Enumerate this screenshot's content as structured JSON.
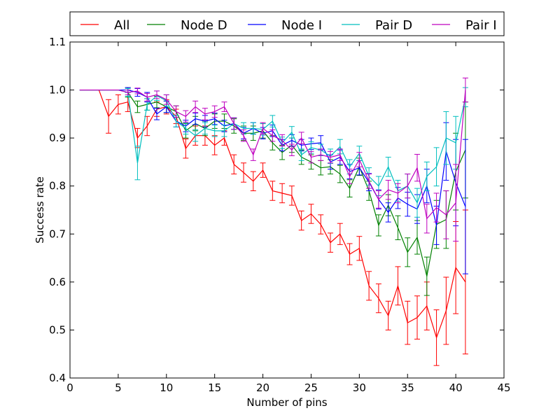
{
  "chart_data": {
    "type": "line",
    "title": "",
    "xlabel": "Number of pins",
    "ylabel": "Success rate",
    "xlim": [
      0,
      45
    ],
    "ylim": [
      0.4,
      1.1
    ],
    "x_ticks": [
      0,
      5,
      10,
      15,
      20,
      25,
      30,
      35,
      40,
      45
    ],
    "y_ticks": [
      0.4,
      0.5,
      0.6,
      0.7,
      0.8,
      0.9,
      1.0,
      1.1
    ],
    "grid": false,
    "legend_position": "top",
    "error_bars": true,
    "series": [
      {
        "name": "All",
        "color": "#ff0000",
        "x": [
          1,
          2,
          3,
          4,
          5,
          6,
          7,
          8,
          9,
          10,
          11,
          12,
          13,
          14,
          15,
          16,
          17,
          18,
          19,
          20,
          21,
          22,
          23,
          24,
          25,
          26,
          27,
          28,
          29,
          30,
          31,
          32,
          33,
          34,
          35,
          36,
          37,
          38,
          39,
          40,
          41
        ],
        "y": [
          1.0,
          1.0,
          1.0,
          0.945,
          0.97,
          0.975,
          0.9,
          0.925,
          0.96,
          0.965,
          0.945,
          0.878,
          0.905,
          0.905,
          0.885,
          0.9,
          0.845,
          0.828,
          0.81,
          0.833,
          0.79,
          0.785,
          0.78,
          0.728,
          0.742,
          0.72,
          0.682,
          0.7,
          0.658,
          0.67,
          0.592,
          0.566,
          0.53,
          0.592,
          0.515,
          0.526,
          0.55,
          0.484,
          0.54,
          0.63,
          0.6
        ],
        "err": [
          0,
          0,
          0,
          0.035,
          0.02,
          0.02,
          0.02,
          0.02,
          0.015,
          0.015,
          0.015,
          0.02,
          0.02,
          0.02,
          0.02,
          0.015,
          0.02,
          0.02,
          0.02,
          0.015,
          0.02,
          0.02,
          0.02,
          0.02,
          0.02,
          0.02,
          0.02,
          0.022,
          0.022,
          0.025,
          0.03,
          0.03,
          0.03,
          0.04,
          0.045,
          0.045,
          0.05,
          0.058,
          0.07,
          0.096,
          0.15
        ]
      },
      {
        "name": "Node D",
        "color": "#008000",
        "x": [
          1,
          2,
          3,
          4,
          5,
          6,
          7,
          8,
          9,
          10,
          11,
          12,
          13,
          14,
          15,
          16,
          17,
          18,
          19,
          20,
          21,
          22,
          23,
          24,
          25,
          26,
          27,
          28,
          29,
          30,
          31,
          32,
          33,
          34,
          35,
          36,
          37,
          38,
          39,
          40,
          41
        ],
        "y": [
          1.0,
          1.0,
          1.0,
          1.0,
          1.0,
          0.995,
          0.965,
          0.97,
          0.975,
          0.965,
          0.955,
          0.915,
          0.93,
          0.92,
          0.935,
          0.935,
          0.925,
          0.91,
          0.91,
          0.915,
          0.89,
          0.87,
          0.885,
          0.86,
          0.85,
          0.838,
          0.84,
          0.825,
          0.795,
          0.84,
          0.79,
          0.718,
          0.76,
          0.713,
          0.662,
          0.693,
          0.612,
          0.72,
          0.73,
          0.83,
          0.875
        ],
        "err": [
          0,
          0,
          0,
          0,
          0,
          0.01,
          0.012,
          0.012,
          0.012,
          0.012,
          0.012,
          0.015,
          0.015,
          0.015,
          0.015,
          0.015,
          0.015,
          0.015,
          0.015,
          0.015,
          0.015,
          0.015,
          0.015,
          0.015,
          0.015,
          0.015,
          0.015,
          0.018,
          0.018,
          0.018,
          0.02,
          0.022,
          0.022,
          0.025,
          0.03,
          0.035,
          0.04,
          0.05,
          0.06,
          0.08,
          0.1
        ]
      },
      {
        "name": "Node I",
        "color": "#0000ff",
        "x": [
          1,
          2,
          3,
          4,
          5,
          6,
          7,
          8,
          9,
          10,
          11,
          12,
          13,
          14,
          15,
          16,
          17,
          18,
          19,
          20,
          21,
          22,
          23,
          24,
          25,
          26,
          27,
          28,
          29,
          30,
          31,
          32,
          33,
          34,
          35,
          36,
          37,
          38,
          39,
          40,
          41
        ],
        "y": [
          1.0,
          1.0,
          1.0,
          1.0,
          1.0,
          1.0,
          0.995,
          0.985,
          0.95,
          0.965,
          0.935,
          0.925,
          0.94,
          0.935,
          0.94,
          0.925,
          0.93,
          0.91,
          0.92,
          0.91,
          0.915,
          0.885,
          0.895,
          0.885,
          0.888,
          0.89,
          0.85,
          0.86,
          0.83,
          0.838,
          0.808,
          0.772,
          0.745,
          0.775,
          0.762,
          0.752,
          0.8,
          0.718,
          0.872,
          0.807,
          0.757
        ],
        "err": [
          0,
          0,
          0,
          0,
          0,
          0.005,
          0.008,
          0.01,
          0.012,
          0.012,
          0.012,
          0.012,
          0.012,
          0.012,
          0.012,
          0.012,
          0.012,
          0.012,
          0.012,
          0.012,
          0.012,
          0.012,
          0.012,
          0.012,
          0.012,
          0.015,
          0.015,
          0.015,
          0.015,
          0.015,
          0.018,
          0.02,
          0.02,
          0.022,
          0.025,
          0.03,
          0.035,
          0.04,
          0.06,
          0.09,
          0.14
        ]
      },
      {
        "name": "Pair D",
        "color": "#00bfbf",
        "x": [
          1,
          2,
          3,
          4,
          5,
          6,
          7,
          8,
          9,
          10,
          11,
          12,
          13,
          14,
          15,
          16,
          17,
          18,
          19,
          20,
          21,
          22,
          23,
          24,
          25,
          26,
          27,
          28,
          29,
          30,
          31,
          32,
          33,
          34,
          35,
          36,
          37,
          38,
          39,
          40,
          41
        ],
        "y": [
          1.0,
          1.0,
          1.0,
          1.0,
          1.0,
          0.995,
          0.848,
          0.97,
          0.988,
          0.978,
          0.935,
          0.92,
          0.905,
          0.92,
          0.915,
          0.915,
          0.93,
          0.92,
          0.92,
          0.918,
          0.935,
          0.89,
          0.912,
          0.865,
          0.88,
          0.875,
          0.862,
          0.882,
          0.84,
          0.868,
          0.82,
          0.8,
          0.84,
          0.79,
          0.8,
          0.765,
          0.82,
          0.84,
          0.9,
          0.89,
          0.985
        ],
        "err": [
          0,
          0,
          0,
          0,
          0,
          0.008,
          0.035,
          0.012,
          0.01,
          0.012,
          0.012,
          0.012,
          0.012,
          0.012,
          0.012,
          0.012,
          0.012,
          0.012,
          0.012,
          0.012,
          0.012,
          0.012,
          0.012,
          0.012,
          0.012,
          0.012,
          0.015,
          0.015,
          0.015,
          0.015,
          0.018,
          0.02,
          0.02,
          0.022,
          0.025,
          0.03,
          0.03,
          0.04,
          0.055,
          0.055,
          0.02
        ]
      },
      {
        "name": "Pair I",
        "color": "#bf00bf",
        "x": [
          1,
          2,
          3,
          4,
          5,
          6,
          7,
          8,
          9,
          10,
          11,
          12,
          13,
          14,
          15,
          16,
          17,
          18,
          19,
          20,
          21,
          22,
          23,
          24,
          25,
          26,
          27,
          28,
          29,
          30,
          31,
          32,
          33,
          34,
          35,
          36,
          37,
          38,
          39,
          40,
          41
        ],
        "y": [
          1.0,
          1.0,
          1.0,
          1.0,
          1.0,
          0.995,
          0.998,
          0.985,
          0.99,
          0.98,
          0.955,
          0.945,
          0.965,
          0.95,
          0.955,
          0.965,
          0.93,
          0.905,
          0.865,
          0.92,
          0.905,
          0.895,
          0.875,
          0.9,
          0.86,
          0.865,
          0.86,
          0.865,
          0.82,
          0.855,
          0.81,
          0.772,
          0.792,
          0.785,
          0.8,
          0.838,
          0.732,
          0.755,
          0.74,
          0.765,
          1.0
        ],
        "err": [
          0,
          0,
          0,
          0,
          0,
          0.005,
          0.006,
          0.008,
          0.008,
          0.01,
          0.012,
          0.012,
          0.012,
          0.012,
          0.012,
          0.01,
          0.012,
          0.012,
          0.012,
          0.012,
          0.012,
          0.012,
          0.012,
          0.012,
          0.012,
          0.012,
          0.012,
          0.012,
          0.015,
          0.015,
          0.015,
          0.018,
          0.02,
          0.02,
          0.025,
          0.028,
          0.03,
          0.03,
          0.05,
          0.08,
          0.025
        ]
      }
    ]
  }
}
